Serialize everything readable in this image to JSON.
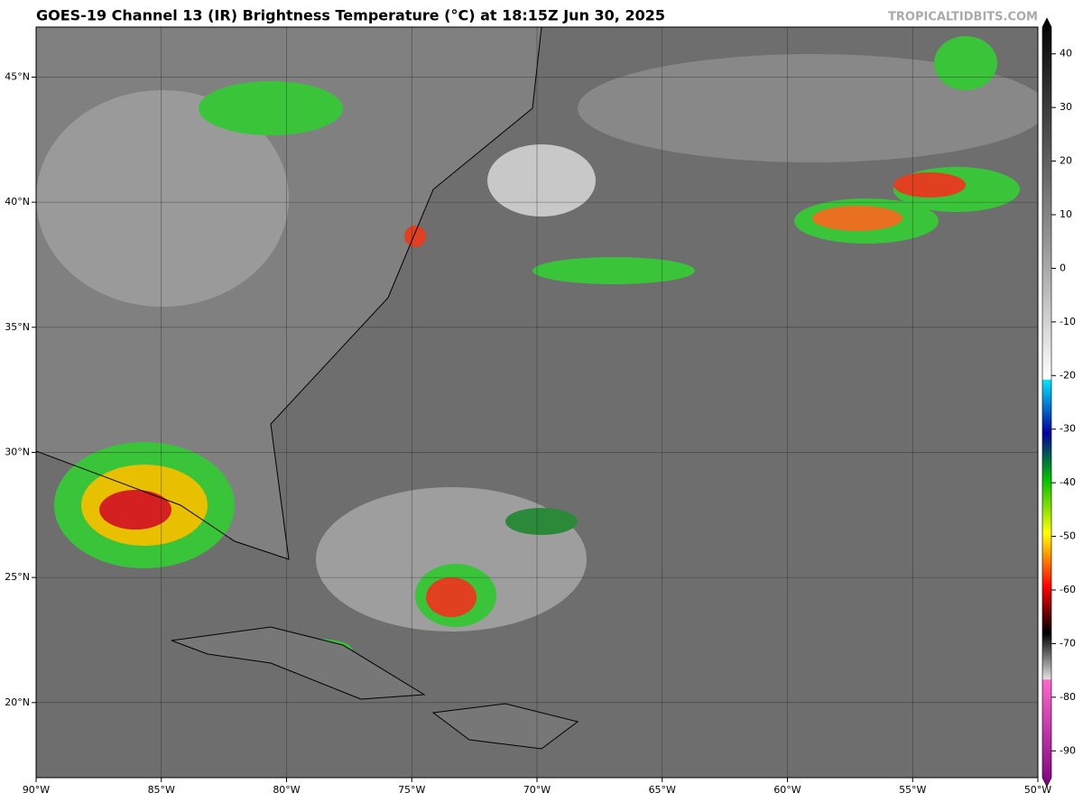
{
  "title": "GOES-19 Channel 13 (IR) Brightness Temperature (°C) at 18:15Z Jun 30, 2025",
  "credit": "TROPICALTIDBITS.COM",
  "map": {
    "xlim": [
      -90,
      -50
    ],
    "ylim": [
      17,
      47
    ],
    "xticks": [
      {
        "value": -90,
        "label": "90°W"
      },
      {
        "value": -85,
        "label": "85°W"
      },
      {
        "value": -80,
        "label": "80°W"
      },
      {
        "value": -75,
        "label": "75°W"
      },
      {
        "value": -70,
        "label": "70°W"
      },
      {
        "value": -65,
        "label": "65°W"
      },
      {
        "value": -60,
        "label": "60°W"
      },
      {
        "value": -55,
        "label": "55°W"
      },
      {
        "value": -50,
        "label": "50°W"
      }
    ],
    "yticks": [
      {
        "value": 20,
        "label": "20°N"
      },
      {
        "value": 25,
        "label": "25°N"
      },
      {
        "value": 30,
        "label": "30°N"
      },
      {
        "value": 35,
        "label": "35°N"
      },
      {
        "value": 40,
        "label": "40°N"
      },
      {
        "value": 45,
        "label": "45°N"
      }
    ]
  },
  "colorbar": {
    "lim": [
      -95,
      45
    ],
    "ticks": [
      40,
      30,
      20,
      10,
      0,
      -10,
      -20,
      -30,
      -40,
      -50,
      -60,
      -70,
      -80,
      -90
    ]
  }
}
